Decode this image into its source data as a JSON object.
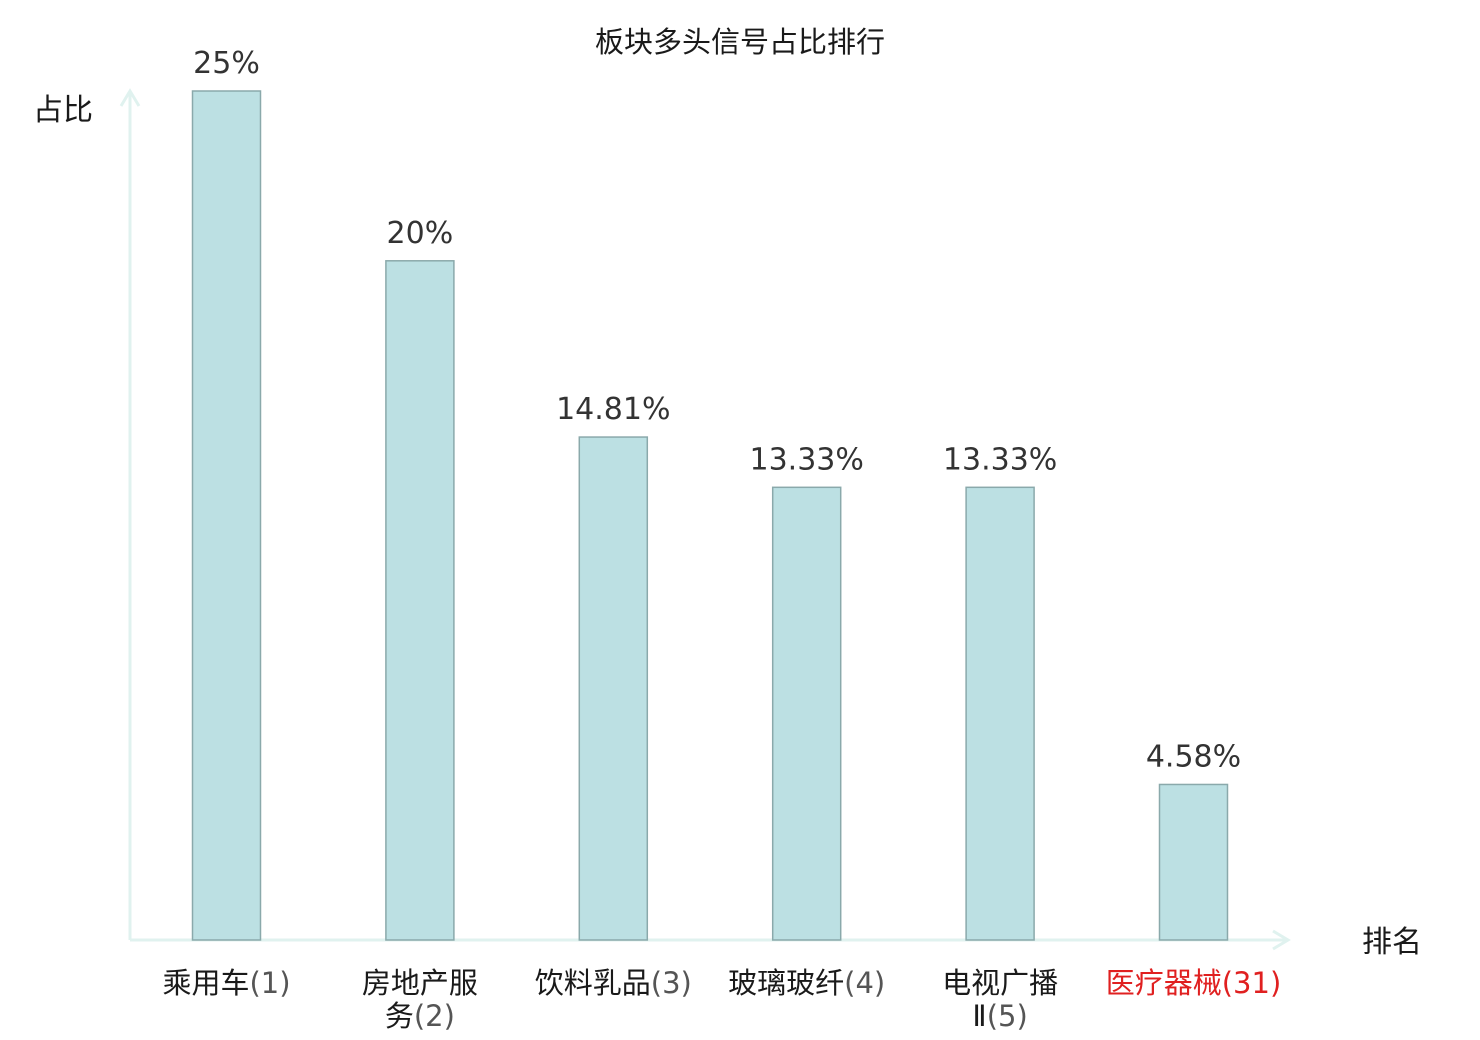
{
  "chart_data": {
    "type": "bar",
    "title": "板块多头信号占比排行",
    "ylabel": "占比",
    "xlabel": "排名",
    "ylim": [
      0,
      25
    ],
    "grid": false,
    "categories": [
      {
        "lines": [
          {
            "name": "乘用车",
            "rank": "(1)"
          }
        ],
        "highlight": false
      },
      {
        "lines": [
          {
            "name": "房地产服",
            "rank": ""
          },
          {
            "name": "务",
            "rank": "(2)"
          }
        ],
        "highlight": false
      },
      {
        "lines": [
          {
            "name": "饮料乳品",
            "rank": "(3)"
          }
        ],
        "highlight": false
      },
      {
        "lines": [
          {
            "name": "玻璃玻纤",
            "rank": "(4)"
          }
        ],
        "highlight": false
      },
      {
        "lines": [
          {
            "name": "电视广播",
            "rank": ""
          },
          {
            "name": "Ⅱ",
            "rank": "(5)"
          }
        ],
        "highlight": false
      },
      {
        "lines": [
          {
            "name": "医疗器械",
            "rank": "(31)"
          }
        ],
        "highlight": true
      }
    ],
    "values": [
      25,
      20,
      14.81,
      13.33,
      13.33,
      4.58
    ],
    "value_labels": [
      "25%",
      "20%",
      "14.81%",
      "13.33%",
      "13.33%",
      "4.58%"
    ]
  },
  "colors": {
    "bar_fill": "#bce0e3",
    "bar_stroke": "#8aa9ab",
    "axis": "#e0f2ef",
    "highlight": "#e02020"
  }
}
